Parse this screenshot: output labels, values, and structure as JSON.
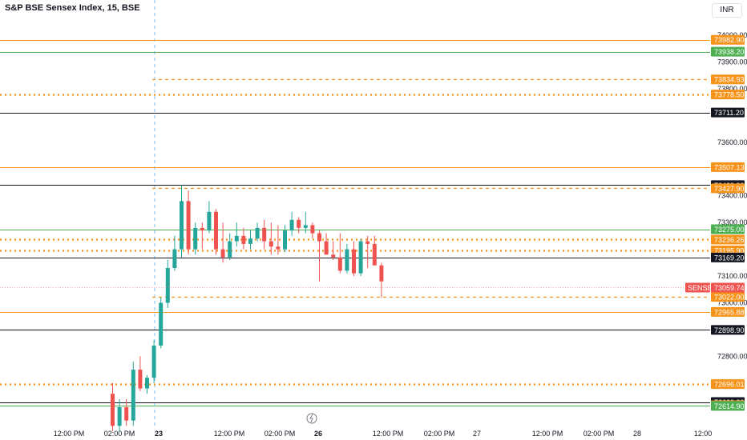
{
  "header": {
    "title": "S&P BSE Sensex Index, 15, BSE",
    "currency": "INR"
  },
  "chart_data": {
    "type": "candlestick",
    "symbol": "SENSEX",
    "last_price": "73059.74",
    "y_ticks": [
      "74000.00",
      "73900.00",
      "73800.00",
      "73600.00",
      "73400.00",
      "73300.00",
      "73100.00",
      "73000.00",
      "72800.00"
    ],
    "x_ticks": [
      "12:00 PM",
      "02:00 PM",
      "23",
      "12:00 PM",
      "02:00 PM",
      "26",
      "12:00 PM",
      "02:00 PM",
      "27",
      "12:00 PM",
      "02:00 PM",
      "28",
      "12:00"
    ],
    "colors": {
      "up": "#26a69a",
      "down": "#ef5350",
      "orange": "#f7931a",
      "green": "#4caf50",
      "black": "#131722",
      "last": "#ef5350"
    },
    "levels": [
      {
        "label": "73982.90",
        "price": 73982.9,
        "color": "orange",
        "style": "solid"
      },
      {
        "label": "73938.20",
        "price": 73938.2,
        "color": "green",
        "style": "solid"
      },
      {
        "label": "73834.93",
        "price": 73834.93,
        "color": "orange",
        "style": "dashed"
      },
      {
        "label": "73778.50",
        "price": 73778.5,
        "color": "orange",
        "style": "dotted"
      },
      {
        "label": "73711.20",
        "price": 73711.2,
        "color": "black",
        "style": "solid"
      },
      {
        "label": "73507.13",
        "price": 73507.13,
        "color": "orange",
        "style": "solid"
      },
      {
        "label": "73439.90",
        "price": 73439.9,
        "color": "black",
        "style": "solid"
      },
      {
        "label": "73427.90",
        "price": 73427.9,
        "color": "orange",
        "style": "dashed"
      },
      {
        "label": "73275.00",
        "price": 73275.0,
        "color": "green",
        "style": "solid"
      },
      {
        "label": "73236.26",
        "price": 73236.26,
        "color": "orange",
        "style": "dotted"
      },
      {
        "label": "73195.90",
        "price": 73195.9,
        "color": "orange",
        "style": "dotted"
      },
      {
        "label": "73169.20",
        "price": 73169.2,
        "color": "black",
        "style": "solid"
      },
      {
        "label": "73022.00",
        "price": 73022.0,
        "color": "orange",
        "style": "dashed"
      },
      {
        "label": "72965.88",
        "price": 72965.88,
        "color": "orange",
        "style": "solid"
      },
      {
        "label": "72898.90",
        "price": 72898.9,
        "color": "black",
        "style": "solid"
      },
      {
        "label": "72696.01",
        "price": 72696.01,
        "color": "orange",
        "style": "dotted"
      },
      {
        "label": "72629.20",
        "price": 72629.2,
        "color": "black",
        "style": "solid"
      },
      {
        "label": "72617.20",
        "price": 72617.2,
        "color": "orange",
        "style": "solid"
      },
      {
        "label": "72614.90",
        "price": 72614.9,
        "color": "green",
        "style": "solid"
      }
    ],
    "candles": [
      {
        "o": 72660,
        "h": 72700,
        "l": 72520,
        "c": 72540
      },
      {
        "o": 72540,
        "h": 72640,
        "l": 72520,
        "c": 72610
      },
      {
        "o": 72610,
        "h": 72640,
        "l": 72540,
        "c": 72560
      },
      {
        "o": 72560,
        "h": 72780,
        "l": 72540,
        "c": 72750
      },
      {
        "o": 72750,
        "h": 72800,
        "l": 72670,
        "c": 72680
      },
      {
        "o": 72680,
        "h": 72730,
        "l": 72660,
        "c": 72720
      },
      {
        "o": 72720,
        "h": 72860,
        "l": 72700,
        "c": 72840
      },
      {
        "o": 72840,
        "h": 73020,
        "l": 72830,
        "c": 73000
      },
      {
        "o": 73000,
        "h": 73160,
        "l": 72980,
        "c": 73130
      },
      {
        "o": 73130,
        "h": 73250,
        "l": 73120,
        "c": 73200
      },
      {
        "o": 73200,
        "h": 73440,
        "l": 73170,
        "c": 73380
      },
      {
        "o": 73380,
        "h": 73420,
        "l": 73180,
        "c": 73200
      },
      {
        "o": 73200,
        "h": 73300,
        "l": 73180,
        "c": 73280
      },
      {
        "o": 73280,
        "h": 73300,
        "l": 73200,
        "c": 73270
      },
      {
        "o": 73270,
        "h": 73380,
        "l": 73260,
        "c": 73340
      },
      {
        "o": 73340,
        "h": 73350,
        "l": 73180,
        "c": 73200
      },
      {
        "o": 73200,
        "h": 73300,
        "l": 73150,
        "c": 73170
      },
      {
        "o": 73170,
        "h": 73260,
        "l": 73160,
        "c": 73230
      },
      {
        "o": 73230,
        "h": 73300,
        "l": 73210,
        "c": 73250
      },
      {
        "o": 73250,
        "h": 73280,
        "l": 73200,
        "c": 73220
      },
      {
        "o": 73220,
        "h": 73270,
        "l": 73200,
        "c": 73240
      },
      {
        "o": 73240,
        "h": 73300,
        "l": 73230,
        "c": 73280
      },
      {
        "o": 73280,
        "h": 73310,
        "l": 73200,
        "c": 73230
      },
      {
        "o": 73230,
        "h": 73300,
        "l": 73180,
        "c": 73210
      },
      {
        "o": 73210,
        "h": 73290,
        "l": 73180,
        "c": 73200
      },
      {
        "o": 73200,
        "h": 73290,
        "l": 73190,
        "c": 73270
      },
      {
        "o": 73270,
        "h": 73340,
        "l": 73250,
        "c": 73310
      },
      {
        "o": 73310,
        "h": 73320,
        "l": 73260,
        "c": 73280
      },
      {
        "o": 73280,
        "h": 73340,
        "l": 73260,
        "c": 73290
      },
      {
        "o": 73290,
        "h": 73300,
        "l": 73240,
        "c": 73260
      },
      {
        "o": 73260,
        "h": 73270,
        "l": 73080,
        "c": 73230
      },
      {
        "o": 73230,
        "h": 73260,
        "l": 73180,
        "c": 73180
      },
      {
        "o": 73180,
        "h": 73230,
        "l": 73160,
        "c": 73170
      },
      {
        "o": 73170,
        "h": 73260,
        "l": 73110,
        "c": 73120
      },
      {
        "o": 73120,
        "h": 73220,
        "l": 73110,
        "c": 73200
      },
      {
        "o": 73200,
        "h": 73230,
        "l": 73100,
        "c": 73110
      },
      {
        "o": 73110,
        "h": 73240,
        "l": 73100,
        "c": 73230
      },
      {
        "o": 73230,
        "h": 73250,
        "l": 73130,
        "c": 73220
      },
      {
        "o": 73220,
        "h": 73250,
        "l": 73140,
        "c": 73140
      },
      {
        "o": 73140,
        "h": 73150,
        "l": 73020,
        "c": 73080
      }
    ]
  }
}
